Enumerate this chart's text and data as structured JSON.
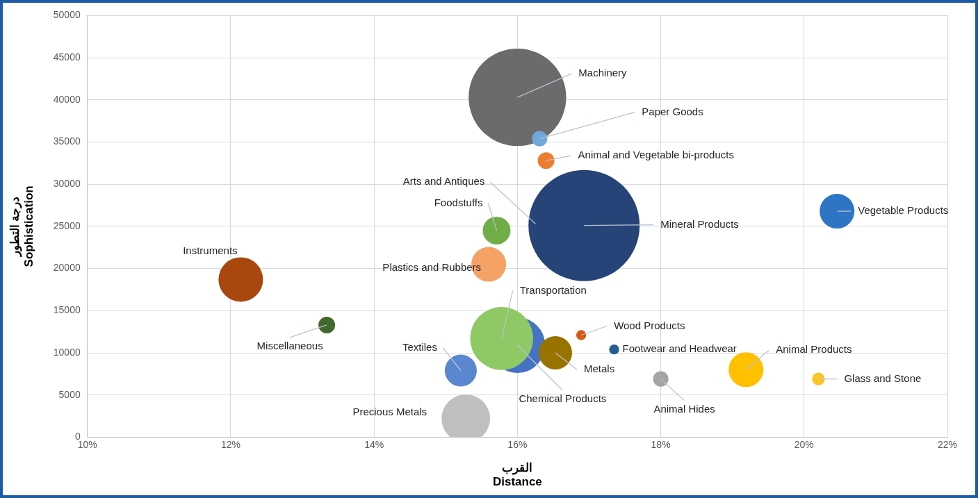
{
  "chart_data": {
    "type": "bubble",
    "xlabel": "القرب\nDistance",
    "ylabel": "درجة التطور\nSophistication",
    "xlim": [
      10,
      22
    ],
    "xticks": [
      {
        "value": 10,
        "label": "10%"
      },
      {
        "value": 12,
        "label": "12%"
      },
      {
        "value": 14,
        "label": "14%"
      },
      {
        "value": 16,
        "label": "16%"
      },
      {
        "value": 18,
        "label": "18%"
      },
      {
        "value": 20,
        "label": "20%"
      },
      {
        "value": 22,
        "label": "22%"
      }
    ],
    "ylim": [
      0,
      50000
    ],
    "yticks": [
      0,
      5000,
      10000,
      15000,
      20000,
      25000,
      30000,
      35000,
      40000,
      45000,
      50000
    ],
    "grid": true,
    "legend": false,
    "series": [
      {
        "name": "Machinery",
        "color": "#6b6b6b",
        "x": [
          16.0
        ],
        "values": [
          40300
        ],
        "sizes": [
          0.77
        ]
      },
      {
        "name": "Paper Goods",
        "color": "#6fa8dc",
        "x": [
          16.31
        ],
        "values": [
          35400
        ],
        "sizes": [
          0.019
        ]
      },
      {
        "name": "Animal and Vegetable bi-products",
        "color": "#ed7d31",
        "x": [
          16.4
        ],
        "values": [
          32800
        ],
        "sizes": [
          0.0225
        ]
      },
      {
        "name": "Mineral Products",
        "color": "#264478",
        "x": [
          16.93
        ],
        "values": [
          25100
        ],
        "sizes": [
          1
        ]
      },
      {
        "name": "Vegetable Products",
        "color": "#2e75c6",
        "x": [
          20.46
        ],
        "values": [
          26800
        ],
        "sizes": [
          0.098
        ]
      },
      {
        "name": "Foodstuffs",
        "color": "#70ad47",
        "x": [
          15.71
        ],
        "values": [
          24500
        ],
        "sizes": [
          0.0625
        ]
      },
      {
        "name": "Plastics and Rubbers",
        "color": "#f4a266",
        "x": [
          15.6
        ],
        "values": [
          20500
        ],
        "sizes": [
          0.098
        ]
      },
      {
        "name": "Instruments",
        "color": "#a9470f",
        "x": [
          12.14
        ],
        "values": [
          18700
        ],
        "sizes": [
          0.16
        ]
      },
      {
        "name": "Miscellaneous",
        "color": "#43682b",
        "x": [
          13.34
        ],
        "values": [
          13300
        ],
        "sizes": [
          0.0225
        ]
      },
      {
        "name": "Chemical Products",
        "color": "#4472c4",
        "x": [
          16.0
        ],
        "values": [
          10900
        ],
        "sizes": [
          0.25
        ]
      },
      {
        "name": "Transportation",
        "color": "#8fc965",
        "x": [
          15.78
        ],
        "values": [
          11700
        ],
        "sizes": [
          0.32
        ]
      },
      {
        "name": "Wood Products",
        "color": "#d55a12",
        "x": [
          16.89
        ],
        "values": [
          12100
        ],
        "sizes": [
          0.008
        ]
      },
      {
        "name": "Footwear and Headwear",
        "color": "#255e91",
        "x": [
          17.35
        ],
        "values": [
          10400
        ],
        "sizes": [
          0.008
        ]
      },
      {
        "name": "Metals",
        "color": "#997300",
        "x": [
          16.53
        ],
        "values": [
          10000
        ],
        "sizes": [
          0.09
        ]
      },
      {
        "name": "Textiles",
        "color": "#5b87d0",
        "x": [
          15.21
        ],
        "values": [
          7900
        ],
        "sizes": [
          0.083
        ]
      },
      {
        "name": "Animal Products",
        "color": "#ffc000",
        "x": [
          19.19
        ],
        "values": [
          8000
        ],
        "sizes": [
          0.098
        ]
      },
      {
        "name": "Glass and Stone",
        "color": "#f9c622",
        "x": [
          20.2
        ],
        "values": [
          6900
        ],
        "sizes": [
          0.013
        ]
      },
      {
        "name": "Animal Hides",
        "color": "#a5a5a5",
        "x": [
          18.0
        ],
        "values": [
          6900
        ],
        "sizes": [
          0.019
        ]
      },
      {
        "name": "Precious Metals",
        "color": "#bfbfbf",
        "x": [
          15.28
        ],
        "values": [
          2200
        ],
        "sizes": [
          0.19
        ]
      }
    ],
    "annotations": [
      "Arts and Antiques"
    ]
  }
}
